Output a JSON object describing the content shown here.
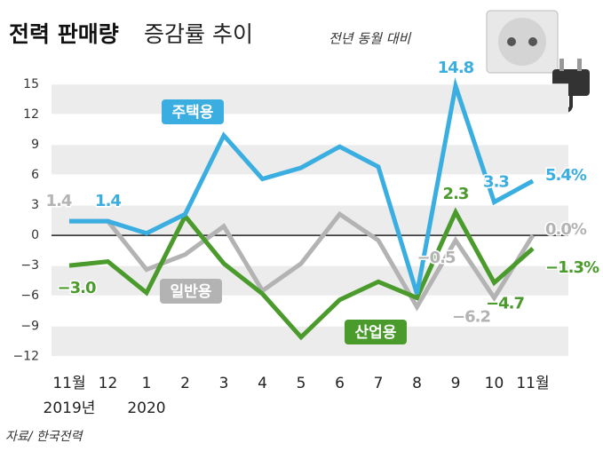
{
  "chart_data": {
    "type": "line",
    "title": "전력 판매량",
    "title_light": "증감률 추이",
    "subtitle": "전년 동월 대비",
    "source": "자료/ 한국전력",
    "categories": [
      "11월",
      "12",
      "1",
      "2",
      "3",
      "4",
      "5",
      "6",
      "7",
      "8",
      "9",
      "10",
      "11월"
    ],
    "sublabels": [
      "2019년",
      null,
      "2020",
      null,
      null,
      null,
      null,
      null,
      null,
      null,
      null,
      null,
      null
    ],
    "series": [
      {
        "name": "주택용",
        "color": "#3aaee0",
        "values": [
          1.4,
          1.4,
          0.2,
          2.1,
          9.9,
          5.6,
          6.7,
          8.8,
          6.8,
          -5.8,
          14.8,
          3.3,
          5.4
        ],
        "value_labels": [
          null,
          "1.4",
          null,
          null,
          null,
          null,
          null,
          null,
          null,
          null,
          "14.8",
          "3.3",
          "5.4%"
        ]
      },
      {
        "name": "일반용",
        "color": "#b3b3b3",
        "values": [
          1.4,
          1.4,
          -3.4,
          -1.9,
          0.9,
          -5.5,
          -2.8,
          2.1,
          -0.5,
          -7.1,
          -0.5,
          -6.2,
          0.0
        ],
        "value_labels": [
          "1.4",
          null,
          null,
          null,
          null,
          null,
          null,
          null,
          null,
          null,
          "−0.5",
          "−6.2",
          "0.0%"
        ]
      },
      {
        "name": "산업용",
        "color": "#4a9a2c",
        "values": [
          -3.0,
          -2.6,
          -5.7,
          1.9,
          -2.8,
          -5.8,
          -10.1,
          -6.4,
          -4.6,
          -6.2,
          2.3,
          -4.7,
          -1.3
        ],
        "value_labels": [
          "−3.0",
          null,
          null,
          null,
          null,
          null,
          null,
          null,
          null,
          null,
          "2.3",
          "−4.7",
          "−1.3%"
        ]
      }
    ],
    "ylim": [
      -12.5,
      16.3
    ],
    "yticks": [
      {
        "value": -12,
        "label": "−12"
      },
      {
        "value": -9,
        "label": "−9"
      },
      {
        "value": -6,
        "label": "−6"
      },
      {
        "value": -3,
        "label": "−3"
      },
      0,
      3,
      6,
      9,
      12,
      15
    ],
    "banded_grid": true
  }
}
